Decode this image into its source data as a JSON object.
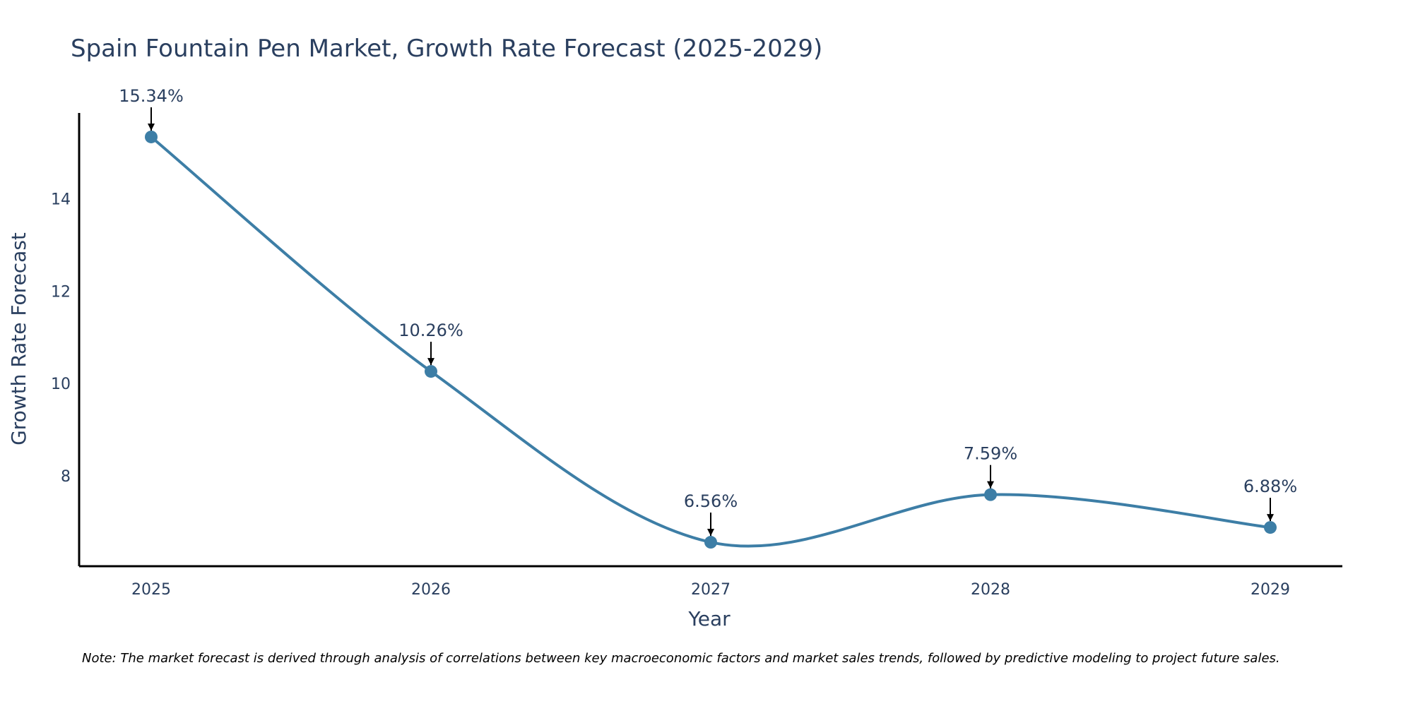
{
  "chart_data": {
    "type": "line",
    "title": "Spain Fountain Pen Market, Growth Rate Forecast (2025-2029)",
    "xlabel": "Year",
    "ylabel": "Growth Rate Forecast",
    "x": [
      "2025",
      "2026",
      "2027",
      "2028",
      "2029"
    ],
    "series": [
      {
        "name": "Growth Rate Forecast",
        "values": [
          15.34,
          10.26,
          6.56,
          7.59,
          6.88
        ],
        "labels": [
          "15.34%",
          "10.26%",
          "6.56%",
          "7.59%",
          "6.88%"
        ]
      }
    ],
    "yticks": [
      8,
      10,
      12,
      14
    ],
    "ytick_labels": [
      "8",
      "10",
      "12",
      "14"
    ],
    "ylim": [
      6.04,
      15.86
    ],
    "line_shape": "spline",
    "grid": false,
    "line_color": "#3d7ea6",
    "marker_color": "#3d7ea6",
    "annotation_arrow_color": "#000000",
    "note": "Note: The market forecast is derived through analysis of correlations between key macroeconomic factors and market sales trends, followed by predictive modeling to project future sales."
  }
}
